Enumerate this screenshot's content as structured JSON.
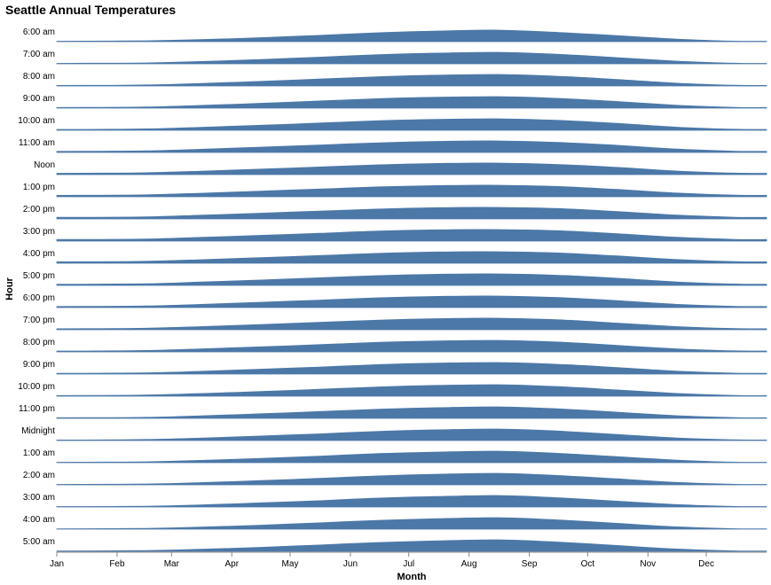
{
  "chart_data": {
    "type": "area",
    "title": "Seattle Annual Temperatures",
    "xlabel": "Month",
    "ylabel": "Hour",
    "categories": [
      "Jan",
      "Feb",
      "Mar",
      "Apr",
      "May",
      "Jun",
      "Jul",
      "Aug",
      "Sep",
      "Oct",
      "Nov",
      "Dec"
    ],
    "value_unit": "relative temperature (0 = row baseline, 1 = row peak)",
    "series": [
      {
        "name": "6:00 am",
        "values": [
          0.05,
          0.08,
          0.18,
          0.35,
          0.55,
          0.78,
          0.92,
          1.0,
          0.8,
          0.52,
          0.22,
          0.05
        ]
      },
      {
        "name": "7:00 am",
        "values": [
          0.05,
          0.08,
          0.2,
          0.38,
          0.58,
          0.8,
          0.93,
          1.0,
          0.82,
          0.54,
          0.23,
          0.05
        ]
      },
      {
        "name": "8:00 am",
        "values": [
          0.05,
          0.09,
          0.22,
          0.4,
          0.6,
          0.81,
          0.94,
          1.0,
          0.84,
          0.56,
          0.24,
          0.06
        ]
      },
      {
        "name": "9:00 am",
        "values": [
          0.06,
          0.1,
          0.24,
          0.42,
          0.62,
          0.82,
          0.95,
          1.0,
          0.85,
          0.58,
          0.25,
          0.07
        ]
      },
      {
        "name": "10:00 am",
        "values": [
          0.08,
          0.12,
          0.26,
          0.44,
          0.63,
          0.83,
          0.95,
          1.0,
          0.86,
          0.6,
          0.27,
          0.09
        ]
      },
      {
        "name": "11:00 am",
        "values": [
          0.1,
          0.14,
          0.28,
          0.46,
          0.65,
          0.84,
          0.96,
          1.0,
          0.87,
          0.62,
          0.29,
          0.11
        ]
      },
      {
        "name": "Noon",
        "values": [
          0.12,
          0.16,
          0.3,
          0.48,
          0.66,
          0.85,
          0.97,
          1.0,
          0.88,
          0.63,
          0.31,
          0.13
        ]
      },
      {
        "name": "1:00 pm",
        "values": [
          0.13,
          0.17,
          0.31,
          0.49,
          0.67,
          0.86,
          0.97,
          1.0,
          0.89,
          0.64,
          0.32,
          0.14
        ]
      },
      {
        "name": "2:00 pm",
        "values": [
          0.14,
          0.18,
          0.32,
          0.5,
          0.68,
          0.86,
          0.98,
          1.0,
          0.9,
          0.65,
          0.33,
          0.15
        ]
      },
      {
        "name": "3:00 pm",
        "values": [
          0.14,
          0.18,
          0.32,
          0.5,
          0.68,
          0.87,
          0.98,
          1.0,
          0.9,
          0.65,
          0.33,
          0.15
        ]
      },
      {
        "name": "4:00 pm",
        "values": [
          0.13,
          0.17,
          0.31,
          0.49,
          0.67,
          0.86,
          0.98,
          1.0,
          0.89,
          0.64,
          0.32,
          0.14
        ]
      },
      {
        "name": "5:00 pm",
        "values": [
          0.11,
          0.15,
          0.29,
          0.47,
          0.66,
          0.85,
          0.97,
          1.0,
          0.88,
          0.62,
          0.3,
          0.12
        ]
      },
      {
        "name": "6:00 pm",
        "values": [
          0.1,
          0.14,
          0.28,
          0.46,
          0.65,
          0.85,
          0.97,
          1.0,
          0.87,
          0.6,
          0.28,
          0.11
        ]
      },
      {
        "name": "7:00 pm",
        "values": [
          0.09,
          0.13,
          0.27,
          0.45,
          0.64,
          0.84,
          0.96,
          1.0,
          0.86,
          0.58,
          0.27,
          0.1
        ]
      },
      {
        "name": "8:00 pm",
        "values": [
          0.08,
          0.12,
          0.26,
          0.44,
          0.63,
          0.83,
          0.95,
          1.0,
          0.85,
          0.57,
          0.26,
          0.09
        ]
      },
      {
        "name": "9:00 pm",
        "values": [
          0.07,
          0.11,
          0.24,
          0.42,
          0.61,
          0.82,
          0.95,
          1.0,
          0.84,
          0.56,
          0.25,
          0.08
        ]
      },
      {
        "name": "10:00 pm",
        "values": [
          0.06,
          0.1,
          0.23,
          0.41,
          0.6,
          0.81,
          0.94,
          1.0,
          0.83,
          0.55,
          0.24,
          0.07
        ]
      },
      {
        "name": "11:00 pm",
        "values": [
          0.06,
          0.09,
          0.22,
          0.4,
          0.59,
          0.8,
          0.93,
          1.0,
          0.82,
          0.54,
          0.23,
          0.07
        ]
      },
      {
        "name": "Midnight",
        "values": [
          0.05,
          0.09,
          0.21,
          0.39,
          0.58,
          0.8,
          0.93,
          1.0,
          0.82,
          0.53,
          0.22,
          0.06
        ]
      },
      {
        "name": "1:00 am",
        "values": [
          0.05,
          0.08,
          0.2,
          0.38,
          0.57,
          0.79,
          0.92,
          1.0,
          0.81,
          0.52,
          0.22,
          0.05
        ]
      },
      {
        "name": "2:00 am",
        "values": [
          0.05,
          0.08,
          0.19,
          0.37,
          0.56,
          0.78,
          0.92,
          1.0,
          0.81,
          0.52,
          0.21,
          0.05
        ]
      },
      {
        "name": "3:00 am",
        "values": [
          0.04,
          0.07,
          0.18,
          0.36,
          0.55,
          0.78,
          0.91,
          1.0,
          0.8,
          0.51,
          0.21,
          0.05
        ]
      },
      {
        "name": "4:00 am",
        "values": [
          0.04,
          0.07,
          0.18,
          0.35,
          0.55,
          0.77,
          0.91,
          1.0,
          0.8,
          0.51,
          0.2,
          0.04
        ]
      },
      {
        "name": "5:00 am",
        "values": [
          0.04,
          0.07,
          0.18,
          0.35,
          0.55,
          0.77,
          0.91,
          1.0,
          0.8,
          0.51,
          0.2,
          0.04
        ]
      }
    ],
    "fill_color": "#4c78a8",
    "grid": false,
    "legend": "none"
  }
}
